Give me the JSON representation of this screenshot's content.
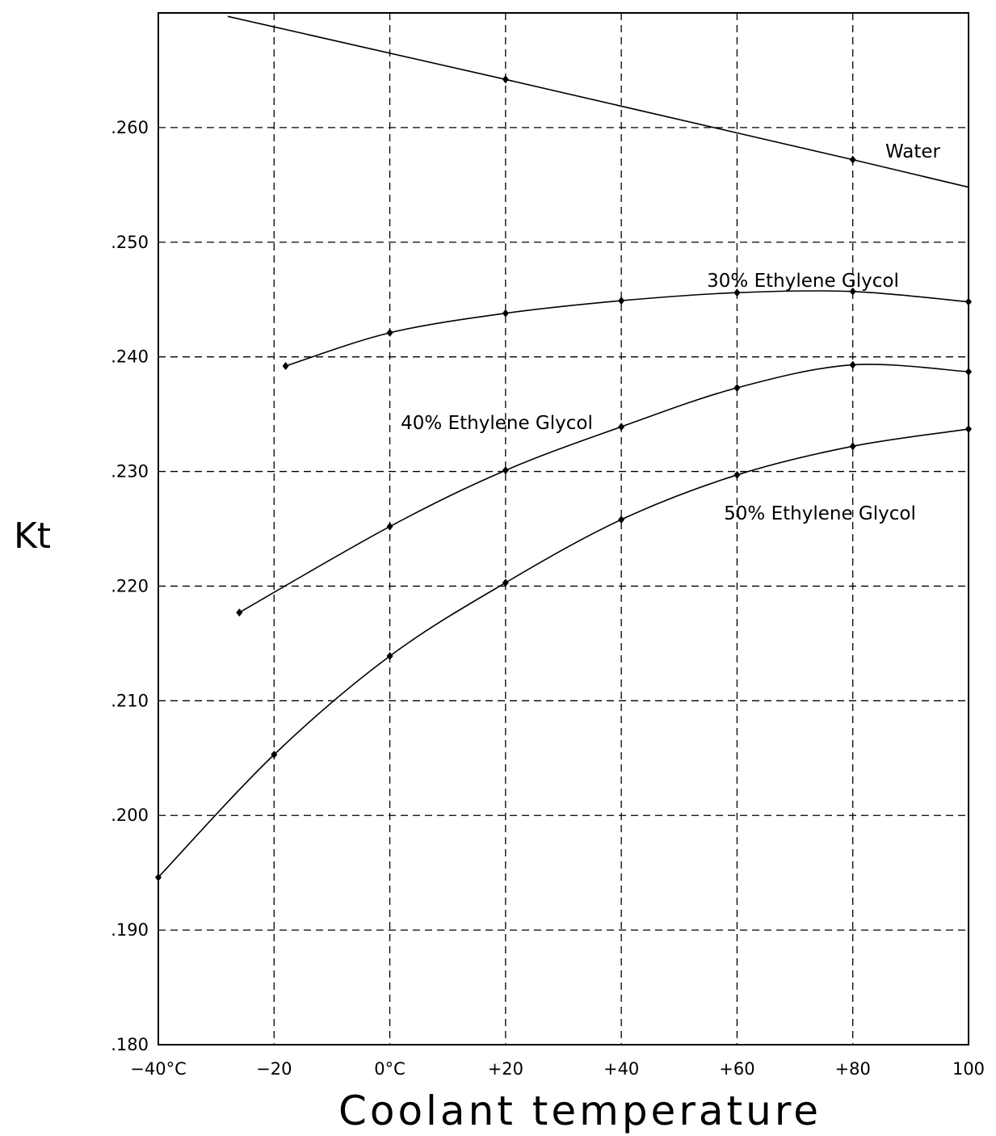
{
  "chart_data": {
    "type": "line",
    "title": "",
    "xlabel": "Coolant temperature",
    "ylabel": "Kt",
    "x_tick_labels": [
      {
        "value": -40,
        "label": "−40°C"
      },
      {
        "value": -20,
        "label": "−20"
      },
      {
        "value": 0,
        "label": "0°C"
      },
      {
        "value": 20,
        "label": "+20"
      },
      {
        "value": 40,
        "label": "+40"
      },
      {
        "value": 60,
        "label": "+60"
      },
      {
        "value": 80,
        "label": "+80"
      },
      {
        "value": 100,
        "label": "100"
      }
    ],
    "y_tick_labels": [
      {
        "value": 0.18,
        "label": ".180"
      },
      {
        "value": 0.19,
        "label": ".190"
      },
      {
        "value": 0.2,
        "label": ".200"
      },
      {
        "value": 0.21,
        "label": ".210"
      },
      {
        "value": 0.22,
        "label": ".220"
      },
      {
        "value": 0.23,
        "label": ".230"
      },
      {
        "value": 0.24,
        "label": ".240"
      },
      {
        "value": 0.25,
        "label": ".250"
      },
      {
        "value": 0.26,
        "label": ".260"
      }
    ],
    "xlim": [
      -40,
      100
    ],
    "ylim": [
      0.18,
      0.27
    ],
    "grid": true,
    "series": [
      {
        "name": "Water",
        "x": [
          -28,
          20,
          80,
          100
        ],
        "y": [
          0.2697,
          0.2642,
          0.2572,
          0.2548
        ],
        "markers": [
          20,
          80
        ]
      },
      {
        "name": "30% Ethylene Glycol",
        "x": [
          -18,
          0,
          20,
          40,
          60,
          80,
          100
        ],
        "y": [
          0.2392,
          0.2421,
          0.2438,
          0.2449,
          0.2456,
          0.2457,
          0.2448
        ],
        "markers": [
          -18,
          0,
          20,
          40,
          60,
          80,
          100
        ]
      },
      {
        "name": "40% Ethylene Glycol",
        "x": [
          -26,
          0,
          20,
          40,
          60,
          80,
          100
        ],
        "y": [
          0.2177,
          0.2252,
          0.2301,
          0.2339,
          0.2373,
          0.2393,
          0.2387
        ],
        "markers": [
          -26,
          0,
          20,
          40,
          60,
          80,
          100
        ]
      },
      {
        "name": "50% Ethylene Glycol",
        "x": [
          -40,
          -20,
          0,
          20,
          40,
          60,
          80,
          100
        ],
        "y": [
          0.1946,
          0.2053,
          0.2139,
          0.2203,
          0.2258,
          0.2297,
          0.2322,
          0.2337
        ],
        "markers": [
          -40,
          -20,
          0,
          20,
          40,
          60,
          80,
          100
        ]
      }
    ]
  }
}
